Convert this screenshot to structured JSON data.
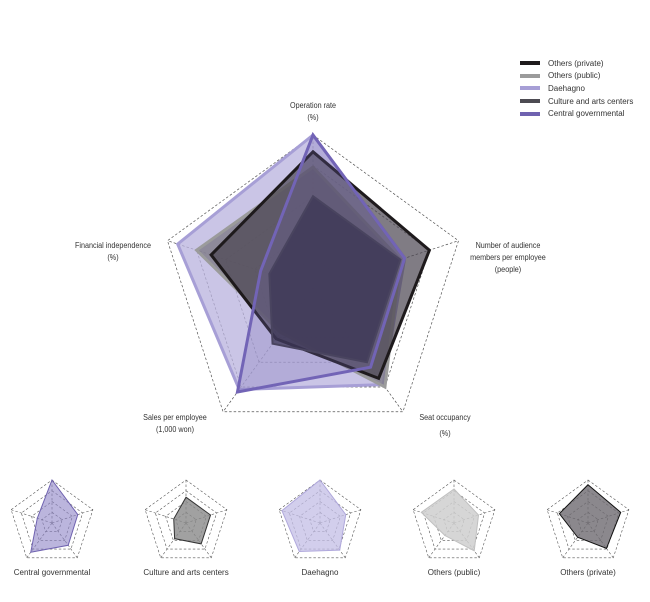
{
  "chart_data": {
    "type": "radar",
    "axes": [
      {
        "label": "Operation rate",
        "unit": "(%)"
      },
      {
        "label": "Number of audience members per  employee",
        "unit": "(people)"
      },
      {
        "label": "Seat occupancy",
        "unit": "(%)"
      },
      {
        "label": "Sales per employee",
        "unit": "(1,000 won)"
      },
      {
        "label": "Financial independence",
        "unit": "(%)"
      }
    ],
    "scale": "relative, 0 to 1",
    "series": [
      {
        "name": "Daehagno",
        "color": "#a79fd6",
        "values": [
          1.0,
          0.63,
          0.78,
          0.82,
          0.93
        ]
      },
      {
        "name": "Others (public)",
        "color": "#9b9b9b",
        "values": [
          0.79,
          0.6,
          0.8,
          0.36,
          0.8
        ]
      },
      {
        "name": "Others (private)",
        "color": "#1e1a1c",
        "values": [
          0.89,
          0.8,
          0.73,
          0.41,
          0.7
        ]
      },
      {
        "name": "Culture and arts centers",
        "color": "#4d4b52",
        "values": [
          0.6,
          0.6,
          0.6,
          0.45,
          0.3
        ]
      },
      {
        "name": "Central governmental",
        "color": "#6f62b0",
        "values": [
          1.0,
          0.63,
          0.64,
          0.84,
          0.36
        ]
      }
    ],
    "legend": {
      "placement": "top-right",
      "order": [
        "Others (private)",
        "Others (public)",
        "Daehagno",
        "Culture and arts centers",
        "Central governmental"
      ]
    },
    "small_multiples": [
      "Central governmental",
      "Culture and arts centers",
      "Daehagno",
      "Others (public)",
      "Others (private)"
    ]
  }
}
